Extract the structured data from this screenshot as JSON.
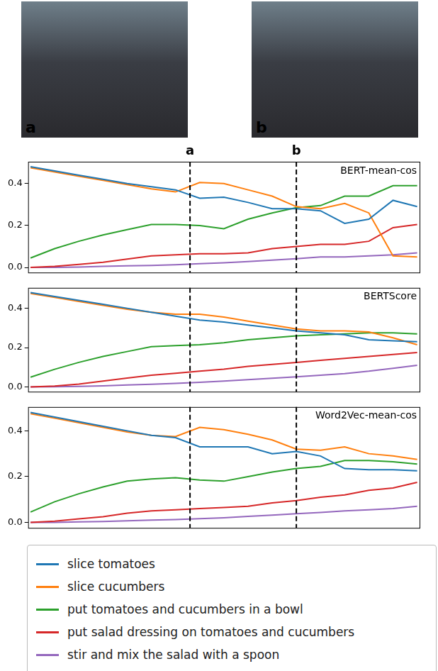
{
  "photos": [
    {
      "label": "a"
    },
    {
      "label": "b"
    }
  ],
  "markers": [
    {
      "x": 6.6,
      "label": "a"
    },
    {
      "x": 11,
      "label": "b"
    }
  ],
  "legend": "bottom",
  "chart_data": [
    {
      "type": "line",
      "title": "BERT-mean-cos",
      "x": [
        0,
        1,
        2,
        3,
        4,
        5,
        6,
        7,
        8,
        9,
        10,
        11,
        12,
        13,
        14,
        15,
        16
      ],
      "xlim": [
        -0.1,
        16.1
      ],
      "ylim": [
        -0.024,
        0.504
      ],
      "yticks": [
        {
          "value": 0,
          "label": "0.0"
        },
        0.2,
        0.4
      ],
      "grid": false,
      "tick_labels": "y",
      "series": [
        {
          "name": "slice tomatoes",
          "color": "#1f77b4",
          "values": [
            0.48,
            0.46,
            0.44,
            0.42,
            0.4,
            0.385,
            0.37,
            0.33,
            0.335,
            0.31,
            0.28,
            0.28,
            0.27,
            0.21,
            0.23,
            0.32,
            0.29
          ]
        },
        {
          "name": "slice cucumbers",
          "color": "#ff7f0e",
          "values": [
            0.475,
            0.455,
            0.435,
            0.415,
            0.395,
            0.375,
            0.36,
            0.405,
            0.4,
            0.37,
            0.34,
            0.29,
            0.28,
            0.305,
            0.26,
            0.055,
            0.05
          ]
        },
        {
          "name": "put tomatoes and cucumbers in a bowl",
          "color": "#2ca02c",
          "values": [
            0.045,
            0.09,
            0.125,
            0.155,
            0.18,
            0.205,
            0.205,
            0.2,
            0.185,
            0.23,
            0.26,
            0.285,
            0.295,
            0.34,
            0.34,
            0.39,
            0.39
          ]
        },
        {
          "name": "put salad dressing on tomatoes and cucumbers",
          "color": "#d62728",
          "values": [
            0.0,
            0.005,
            0.015,
            0.025,
            0.04,
            0.055,
            0.06,
            0.065,
            0.065,
            0.07,
            0.09,
            0.1,
            0.11,
            0.11,
            0.125,
            0.19,
            0.205
          ]
        },
        {
          "name": "stir and mix the salad with a spoon",
          "color": "#9467bd",
          "values": [
            0.0,
            0.0,
            0.002,
            0.005,
            0.008,
            0.01,
            0.013,
            0.018,
            0.022,
            0.028,
            0.035,
            0.042,
            0.05,
            0.05,
            0.055,
            0.06,
            0.07
          ]
        }
      ]
    },
    {
      "type": "line",
      "title": "BERTScore",
      "x": [
        0,
        1,
        2,
        3,
        4,
        5,
        6,
        7,
        8,
        9,
        10,
        11,
        12,
        13,
        14,
        15,
        16
      ],
      "xlim": [
        -0.1,
        16.1
      ],
      "ylim": [
        -0.024,
        0.504
      ],
      "yticks": [
        {
          "value": 0,
          "label": "0.0"
        },
        0.2,
        0.4
      ],
      "grid": false,
      "tick_labels": "y",
      "series": [
        {
          "name": "slice tomatoes",
          "color": "#1f77b4",
          "values": [
            0.48,
            0.46,
            0.44,
            0.42,
            0.4,
            0.38,
            0.36,
            0.34,
            0.33,
            0.315,
            0.3,
            0.285,
            0.275,
            0.265,
            0.24,
            0.235,
            0.23
          ]
        },
        {
          "name": "slice cucumbers",
          "color": "#ff7f0e",
          "values": [
            0.475,
            0.455,
            0.435,
            0.415,
            0.395,
            0.38,
            0.37,
            0.37,
            0.355,
            0.335,
            0.315,
            0.295,
            0.285,
            0.285,
            0.28,
            0.25,
            0.215
          ]
        },
        {
          "name": "put tomatoes and cucumbers in a bowl",
          "color": "#2ca02c",
          "values": [
            0.05,
            0.09,
            0.125,
            0.155,
            0.18,
            0.205,
            0.21,
            0.215,
            0.225,
            0.24,
            0.25,
            0.26,
            0.265,
            0.27,
            0.275,
            0.275,
            0.27
          ]
        },
        {
          "name": "put salad dressing on tomatoes and cucumbers",
          "color": "#d62728",
          "values": [
            0.0,
            0.005,
            0.015,
            0.03,
            0.045,
            0.06,
            0.07,
            0.08,
            0.09,
            0.105,
            0.115,
            0.125,
            0.135,
            0.145,
            0.155,
            0.165,
            0.175
          ]
        },
        {
          "name": "stir and mix the salad with a spoon",
          "color": "#9467bd",
          "values": [
            0.0,
            0.001,
            0.003,
            0.006,
            0.01,
            0.014,
            0.018,
            0.024,
            0.03,
            0.037,
            0.044,
            0.052,
            0.06,
            0.068,
            0.08,
            0.095,
            0.11
          ]
        }
      ]
    },
    {
      "type": "line",
      "title": "Word2Vec-mean-cos",
      "x": [
        0,
        1,
        2,
        3,
        4,
        5,
        6,
        7,
        8,
        9,
        10,
        11,
        12,
        13,
        14,
        15,
        16
      ],
      "xlim": [
        -0.1,
        16.1
      ],
      "ylim": [
        -0.024,
        0.504
      ],
      "yticks": [
        {
          "value": 0,
          "label": "0.0"
        },
        0.2,
        0.4
      ],
      "grid": false,
      "tick_labels": "y",
      "series": [
        {
          "name": "slice tomatoes",
          "color": "#1f77b4",
          "values": [
            0.48,
            0.46,
            0.44,
            0.42,
            0.4,
            0.38,
            0.37,
            0.33,
            0.33,
            0.33,
            0.3,
            0.31,
            0.29,
            0.235,
            0.23,
            0.23,
            0.225
          ]
        },
        {
          "name": "slice cucumbers",
          "color": "#ff7f0e",
          "values": [
            0.475,
            0.455,
            0.435,
            0.415,
            0.395,
            0.38,
            0.375,
            0.415,
            0.405,
            0.385,
            0.36,
            0.32,
            0.315,
            0.33,
            0.3,
            0.29,
            0.275
          ]
        },
        {
          "name": "put tomatoes and cucumbers in a bowl",
          "color": "#2ca02c",
          "values": [
            0.045,
            0.09,
            0.125,
            0.155,
            0.18,
            0.19,
            0.195,
            0.185,
            0.18,
            0.2,
            0.22,
            0.235,
            0.245,
            0.27,
            0.27,
            0.265,
            0.255
          ]
        },
        {
          "name": "put salad dressing on tomatoes and cucumbers",
          "color": "#d62728",
          "values": [
            0.0,
            0.005,
            0.015,
            0.025,
            0.04,
            0.05,
            0.055,
            0.06,
            0.065,
            0.07,
            0.085,
            0.095,
            0.11,
            0.12,
            0.14,
            0.15,
            0.175
          ]
        },
        {
          "name": "stir and mix the salad with a spoon",
          "color": "#9467bd",
          "values": [
            0.0,
            0.0,
            0.002,
            0.004,
            0.007,
            0.01,
            0.012,
            0.016,
            0.02,
            0.026,
            0.032,
            0.038,
            0.043,
            0.05,
            0.055,
            0.06,
            0.07
          ]
        }
      ]
    }
  ]
}
